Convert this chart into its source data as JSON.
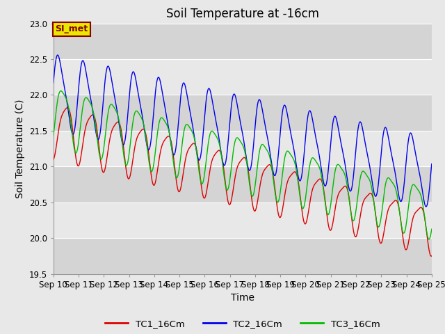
{
  "title": "Soil Temperature at -16cm",
  "xlabel": "Time",
  "ylabel": "Soil Temperature (C)",
  "ylim": [
    19.5,
    23.0
  ],
  "xlim": [
    0,
    15
  ],
  "x_tick_labels": [
    "Sep 10",
    "Sep 11",
    "Sep 12",
    "Sep 13",
    "Sep 14",
    "Sep 15",
    "Sep 16",
    "Sep 17",
    "Sep 18",
    "Sep 19",
    "Sep 20",
    "Sep 21",
    "Sep 22",
    "Sep 23",
    "Sep 24",
    "Sep 25"
  ],
  "series": {
    "TC1_16Cm": {
      "color": "#dd0000",
      "label": "TC1_16Cm"
    },
    "TC2_16Cm": {
      "color": "#0000ee",
      "label": "TC2_16Cm"
    },
    "TC3_16Cm": {
      "color": "#00bb00",
      "label": "TC3_16Cm"
    }
  },
  "legend_box_color": "#e8e800",
  "legend_box_text": "SI_met",
  "legend_box_text_color": "#880000",
  "bg_light": "#e8e8e8",
  "bg_dark": "#d4d4d4",
  "title_fontsize": 12,
  "axis_label_fontsize": 10,
  "tick_fontsize": 8.5
}
